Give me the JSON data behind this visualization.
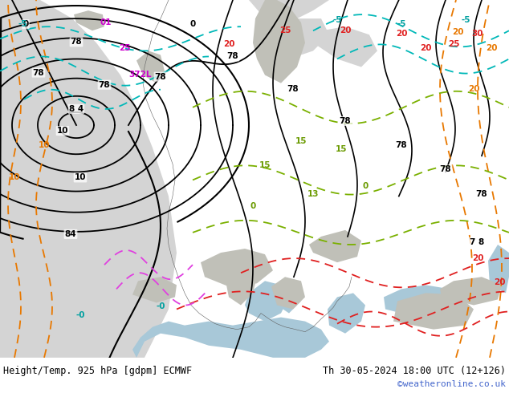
{
  "title_left": "Height/Temp. 925 hPa [gdpm] ECMWF",
  "title_right": "Th 30-05-2024 18:00 UTC (12+126)",
  "watermark": "©weatheronline.co.uk",
  "fig_width": 6.34,
  "fig_height": 4.9,
  "dpi": 100,
  "map_bg": "#b8d878",
  "ocean_color": "#d4d4d4",
  "mountain_color": "#c8c8c8",
  "footer_bg": "#ffffff",
  "title_fontsize": 8.5,
  "watermark_color": "#4466cc",
  "watermark_fontsize": 8
}
